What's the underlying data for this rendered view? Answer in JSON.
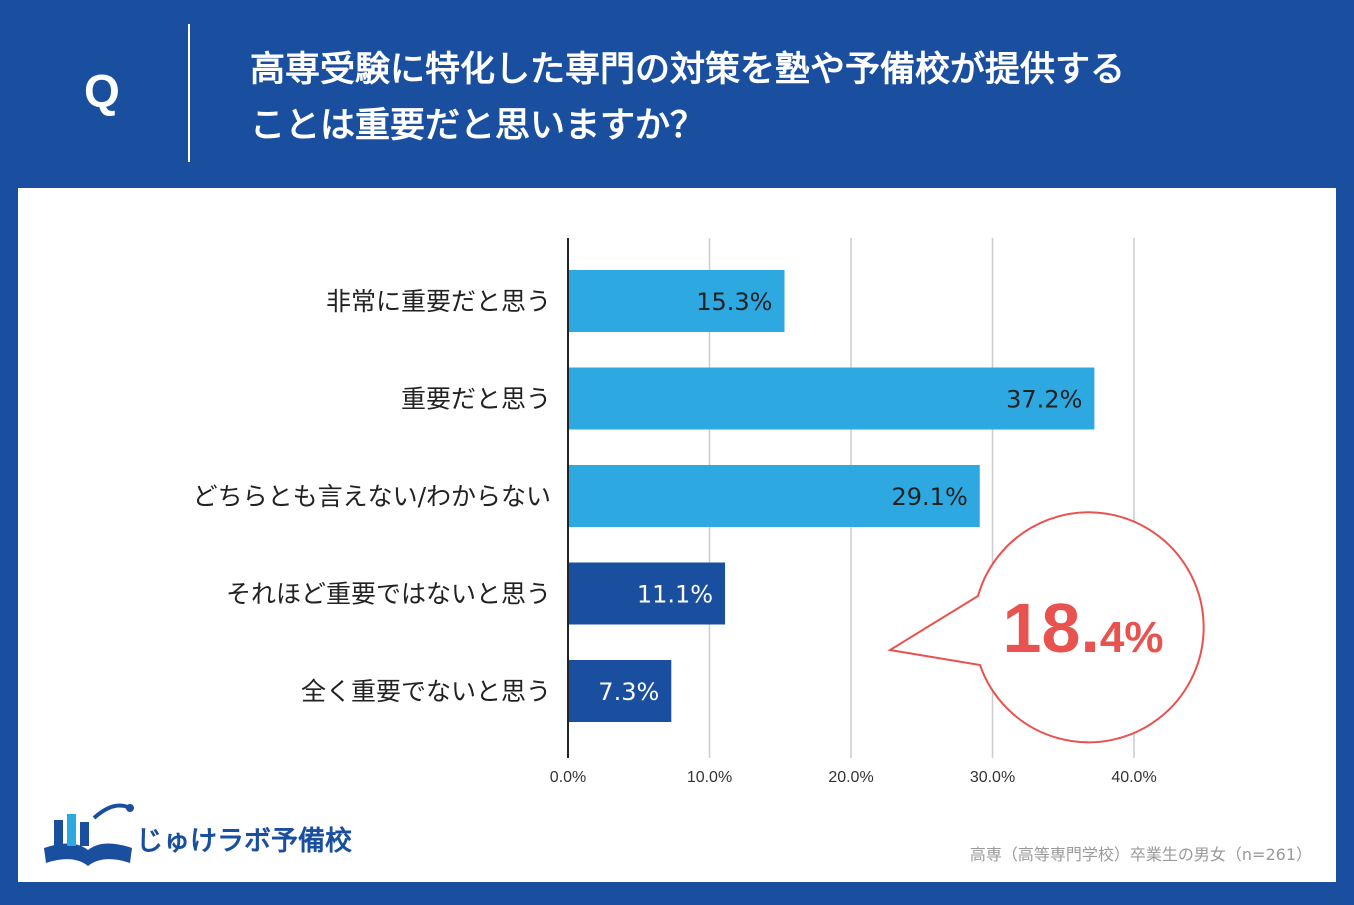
{
  "header": {
    "q_mark": "Q",
    "question_line1": "高専受験に特化した専門の対策を塾や予備校が提供する",
    "question_line2": "ことは重要だと思いますか？"
  },
  "chart_data": {
    "type": "bar",
    "orientation": "horizontal",
    "title": "高専受験に特化した専門の対策を塾や予備校が提供することは重要だと思いますか？",
    "categories": [
      "非常に重要だと思う",
      "重要だと思う",
      "どちらとも言えない/わからない",
      "それほど重要ではないと思う",
      "全く重要でないと思う"
    ],
    "values": [
      15.3,
      37.2,
      29.1,
      11.1,
      7.3
    ],
    "value_labels": [
      "15.3%",
      "37.2%",
      "29.1%",
      "11.1%",
      "7.3%"
    ],
    "bar_colors": [
      "#2ea8e0",
      "#2ea8e0",
      "#2ea8e0",
      "#1a4fa0",
      "#1a4fa0"
    ],
    "value_label_colors": [
      "#222222",
      "#222222",
      "#222222",
      "#ffffff",
      "#ffffff"
    ],
    "xlim": [
      0,
      40
    ],
    "xticks": [
      0,
      10,
      20,
      30,
      40
    ],
    "xtick_labels": [
      "0.0%",
      "10.0%",
      "20.0%",
      "30.0%",
      "40.0%"
    ],
    "grid": true,
    "callout": {
      "int_part": "18.",
      "dec_part": "4",
      "percent": "%"
    }
  },
  "logo": {
    "text": "じゅけラボ予備校"
  },
  "footnote": "高専（高等専門学校）卒業生の男女（n=261）",
  "colors": {
    "header_bg": "#1a4fa0",
    "light_bar": "#2ea8e0",
    "dark_bar": "#1a4fa0",
    "callout": "#e8524f"
  }
}
